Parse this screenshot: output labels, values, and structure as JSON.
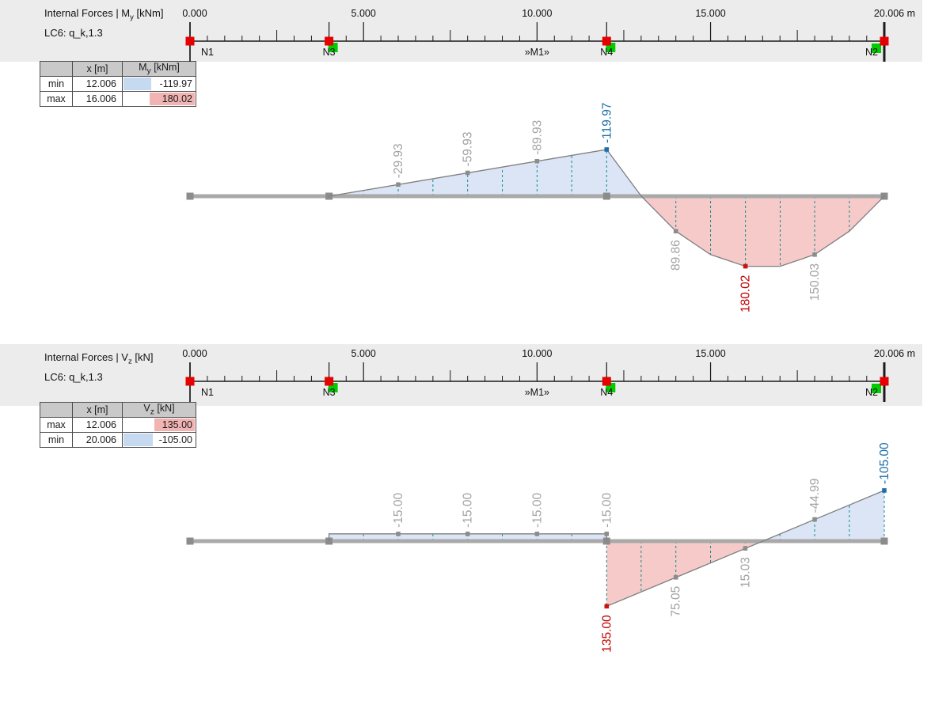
{
  "colors": {
    "band": "#ececec",
    "fill_negative": "#dbe5f6",
    "fill_positive": "#f7caca",
    "hatch": "#138a8a",
    "outline": "#7f7f7f",
    "beam": "#a9a9a9",
    "node_square": "#8c8c8c",
    "ruler_line": "#1a1a1a",
    "marker_red": "#e60000",
    "marker_green": "#00cc00",
    "label_gray": "#a3a3a3",
    "label_blue": "#1e6fa8",
    "label_red": "#c00000",
    "table_hl_blue": "#c5d9f1",
    "table_hl_red": "#f2b3b3"
  },
  "panels": [
    {
      "header": {
        "line1_pre": "Internal Forces | M",
        "line1_sub": "y",
        "line1_post": " [kNm]",
        "line2": "LC6: q_k,1.3"
      },
      "ruler": {
        "length_m": 20.006,
        "minor_step": 0.5,
        "medium_step": 2.5,
        "labels": [
          {
            "m": 0,
            "t": "0.000"
          },
          {
            "m": 5,
            "t": "5.000"
          },
          {
            "m": 10,
            "t": "10.000"
          },
          {
            "m": 15,
            "t": "15.000"
          },
          {
            "m": 20.006,
            "t": "20.006 m"
          }
        ],
        "nodes": [
          {
            "m": 0,
            "t": "N1",
            "marker": "red",
            "ldx": 22
          },
          {
            "m": 4.006,
            "t": "N3",
            "marker": "red-green",
            "ldx": 0
          },
          {
            "m": 10,
            "t": "»M1»",
            "marker": "none",
            "ldx": 0
          },
          {
            "m": 12.006,
            "t": "N4",
            "marker": "red-green",
            "ldx": 0
          },
          {
            "m": 20.006,
            "t": "N2",
            "marker": "red-green-left",
            "ldx": -16
          }
        ]
      },
      "table": {
        "headers": [
          {
            "pre": "",
            "sub": "",
            "post": ""
          },
          {
            "pre": "x [m]",
            "sub": "",
            "post": ""
          },
          {
            "pre": "M",
            "sub": "y",
            "post": " [kNm]"
          }
        ],
        "rows": [
          {
            "label": "min",
            "x": "12.006",
            "value": "-119.97",
            "bar": {
              "side": "left",
              "pct": 38,
              "color": "blue"
            }
          },
          {
            "label": "max",
            "x": "16.006",
            "value": "180.02",
            "bar": {
              "side": "right",
              "pct": 62,
              "color": "red"
            }
          }
        ]
      },
      "diagram": {
        "unit": "kNm",
        "beam": {
          "from_m": 0,
          "to_m": 20.006,
          "nodes_m": [
            0,
            4.006,
            12.006,
            20.006
          ]
        },
        "regions": [
          {
            "fill": "negative",
            "points": [
              [
                4.006,
                0
              ],
              [
                12.006,
                -119.97
              ],
              [
                13.006,
                0
              ]
            ],
            "stroke_pts": [
              [
                4.006,
                0
              ],
              [
                12.006,
                -119.97
              ],
              [
                13.006,
                0
              ]
            ]
          },
          {
            "fill": "positive",
            "points": [
              [
                13.006,
                0
              ],
              [
                14,
                89.86
              ],
              [
                15,
                150.03
              ],
              [
                16.006,
                180.02
              ],
              [
                17.006,
                180.03
              ],
              [
                18,
                150.03
              ],
              [
                19,
                89.86
              ],
              [
                20.006,
                0
              ]
            ],
            "stroke_pts": [
              [
                13.006,
                0
              ],
              [
                14,
                89.86
              ],
              [
                15,
                150.03
              ],
              [
                16.006,
                180.02
              ],
              [
                17.006,
                180.03
              ],
              [
                18,
                150.03
              ],
              [
                19,
                89.86
              ],
              [
                20.006,
                0
              ]
            ]
          }
        ],
        "hatches": [
          [
            5,
            -14.9
          ],
          [
            6,
            -29.93
          ],
          [
            7,
            -44.9
          ],
          [
            8,
            -59.93
          ],
          [
            9,
            -74.9
          ],
          [
            10,
            -89.93
          ],
          [
            11,
            -104.9
          ],
          [
            12.006,
            -119.97
          ],
          [
            14,
            89.86
          ],
          [
            15,
            150.03
          ],
          [
            16.006,
            180.02
          ],
          [
            17.006,
            180.03
          ],
          [
            18,
            150.03
          ],
          [
            19,
            89.86
          ]
        ],
        "markers": [
          {
            "m": 6,
            "v": -29.93,
            "c": "gray"
          },
          {
            "m": 8,
            "v": -59.93,
            "c": "gray"
          },
          {
            "m": 10,
            "v": -89.93,
            "c": "gray"
          },
          {
            "m": 12.006,
            "v": -119.97,
            "c": "blue"
          },
          {
            "m": 14,
            "v": 89.86,
            "c": "gray"
          },
          {
            "m": 16.006,
            "v": 180.02,
            "c": "red"
          },
          {
            "m": 18,
            "v": 150.03,
            "c": "gray"
          }
        ],
        "labels": [
          {
            "t": "-29.93",
            "m": 6,
            "v": -29.93,
            "c": "gray",
            "s": "above"
          },
          {
            "t": "-59.93",
            "m": 8,
            "v": -59.93,
            "c": "gray",
            "s": "above"
          },
          {
            "t": "-89.93",
            "m": 10,
            "v": -89.93,
            "c": "gray",
            "s": "above"
          },
          {
            "t": "-119.97",
            "m": 12.006,
            "v": -119.97,
            "c": "blue",
            "s": "above"
          },
          {
            "t": "89.86",
            "m": 14,
            "v": 89.86,
            "c": "gray",
            "s": "below"
          },
          {
            "t": "180.02",
            "m": 16.006,
            "v": 180.02,
            "c": "red",
            "s": "below"
          },
          {
            "t": "150.03",
            "m": 18,
            "v": 150.03,
            "c": "gray",
            "s": "below"
          }
        ]
      }
    },
    {
      "header": {
        "line1_pre": "Internal Forces | V",
        "line1_sub": "z",
        "line1_post": " [kN]",
        "line2": "LC6: q_k,1.3"
      },
      "ruler": {
        "length_m": 20.006,
        "minor_step": 0.5,
        "medium_step": 2.5,
        "labels": [
          {
            "m": 0,
            "t": "0.000"
          },
          {
            "m": 5,
            "t": "5.000"
          },
          {
            "m": 10,
            "t": "10.000"
          },
          {
            "m": 15,
            "t": "15.000"
          },
          {
            "m": 20.006,
            "t": "20.006 m"
          }
        ],
        "nodes": [
          {
            "m": 0,
            "t": "N1",
            "marker": "red",
            "ldx": 22
          },
          {
            "m": 4.006,
            "t": "N3",
            "marker": "red-green",
            "ldx": 0
          },
          {
            "m": 10,
            "t": "»M1»",
            "marker": "none",
            "ldx": 0
          },
          {
            "m": 12.006,
            "t": "N4",
            "marker": "red-green",
            "ldx": 0
          },
          {
            "m": 20.006,
            "t": "N2",
            "marker": "red-green-left",
            "ldx": -16
          }
        ]
      },
      "table": {
        "headers": [
          {
            "pre": "",
            "sub": "",
            "post": ""
          },
          {
            "pre": "x [m]",
            "sub": "",
            "post": ""
          },
          {
            "pre": "V",
            "sub": "z",
            "post": " [kN]"
          }
        ],
        "rows": [
          {
            "label": "max",
            "x": "12.006",
            "value": "135.00",
            "bar": {
              "side": "right",
              "pct": 55,
              "color": "red"
            }
          },
          {
            "label": "min",
            "x": "20.006",
            "value": "-105.00",
            "bar": {
              "side": "left",
              "pct": 40,
              "color": "blue"
            }
          }
        ]
      },
      "diagram": {
        "unit": "kN",
        "beam": {
          "from_m": 0,
          "to_m": 20.006,
          "nodes_m": [
            0,
            4.006,
            12.006,
            20.006
          ]
        },
        "regions": [
          {
            "fill": "negative",
            "points": [
              [
                4.006,
                0
              ],
              [
                4.006,
                -15
              ],
              [
                12.006,
                -15
              ],
              [
                12.006,
                0
              ]
            ],
            "stroke_pts": [
              [
                4.006,
                0
              ],
              [
                4.006,
                -15
              ],
              [
                12.006,
                -15
              ],
              [
                12.006,
                0
              ]
            ]
          },
          {
            "fill": "positive",
            "points": [
              [
                12.006,
                0
              ],
              [
                12.006,
                135
              ],
              [
                16.506,
                0
              ]
            ],
            "stroke_pts": [
              [
                12.006,
                135
              ],
              [
                16.506,
                0
              ]
            ]
          },
          {
            "fill": "negative",
            "points": [
              [
                16.506,
                0
              ],
              [
                20.006,
                -105
              ],
              [
                20.006,
                0
              ]
            ],
            "stroke_pts": [
              [
                16.506,
                0
              ],
              [
                20.006,
                -105
              ]
            ]
          }
        ],
        "hatches": [
          [
            5,
            -15
          ],
          [
            6,
            -15
          ],
          [
            7,
            -15
          ],
          [
            8,
            -15
          ],
          [
            9,
            -15
          ],
          [
            10,
            -15
          ],
          [
            11,
            -15
          ],
          [
            12.006,
            -15
          ],
          [
            12.006,
            135
          ],
          [
            13,
            105.2
          ],
          [
            14,
            75.05
          ],
          [
            15,
            45.1
          ],
          [
            16,
            15.03
          ],
          [
            17,
            -14.98
          ],
          [
            18,
            -44.99
          ],
          [
            19,
            -74.97
          ],
          [
            20.006,
            -105
          ]
        ],
        "markers": [
          {
            "m": 6,
            "v": -15,
            "c": "gray"
          },
          {
            "m": 8,
            "v": -15,
            "c": "gray"
          },
          {
            "m": 10,
            "v": -15,
            "c": "gray"
          },
          {
            "m": 12.006,
            "v": -15,
            "c": "gray"
          },
          {
            "m": 12.006,
            "v": 135,
            "c": "red"
          },
          {
            "m": 14,
            "v": 75.05,
            "c": "gray"
          },
          {
            "m": 16,
            "v": 15.03,
            "c": "gray"
          },
          {
            "m": 18,
            "v": -44.99,
            "c": "gray"
          },
          {
            "m": 20.006,
            "v": -105,
            "c": "blue"
          }
        ],
        "labels": [
          {
            "t": "-15.00",
            "m": 6,
            "v": -15,
            "c": "gray",
            "s": "above"
          },
          {
            "t": "-15.00",
            "m": 8,
            "v": -15,
            "c": "gray",
            "s": "above"
          },
          {
            "t": "-15.00",
            "m": 10,
            "v": -15,
            "c": "gray",
            "s": "above"
          },
          {
            "t": "-15.00",
            "m": 12.006,
            "v": -15,
            "c": "gray",
            "s": "above"
          },
          {
            "t": "135.00",
            "m": 12.006,
            "v": 135,
            "c": "red",
            "s": "below"
          },
          {
            "t": "75.05",
            "m": 14,
            "v": 75.05,
            "c": "gray",
            "s": "below"
          },
          {
            "t": "15.03",
            "m": 16,
            "v": 15.03,
            "c": "gray",
            "s": "below"
          },
          {
            "t": "-44.99",
            "m": 18,
            "v": -44.99,
            "c": "gray",
            "s": "above"
          },
          {
            "t": "-105.00",
            "m": 20.006,
            "v": -105,
            "c": "blue",
            "s": "above"
          }
        ]
      }
    }
  ]
}
